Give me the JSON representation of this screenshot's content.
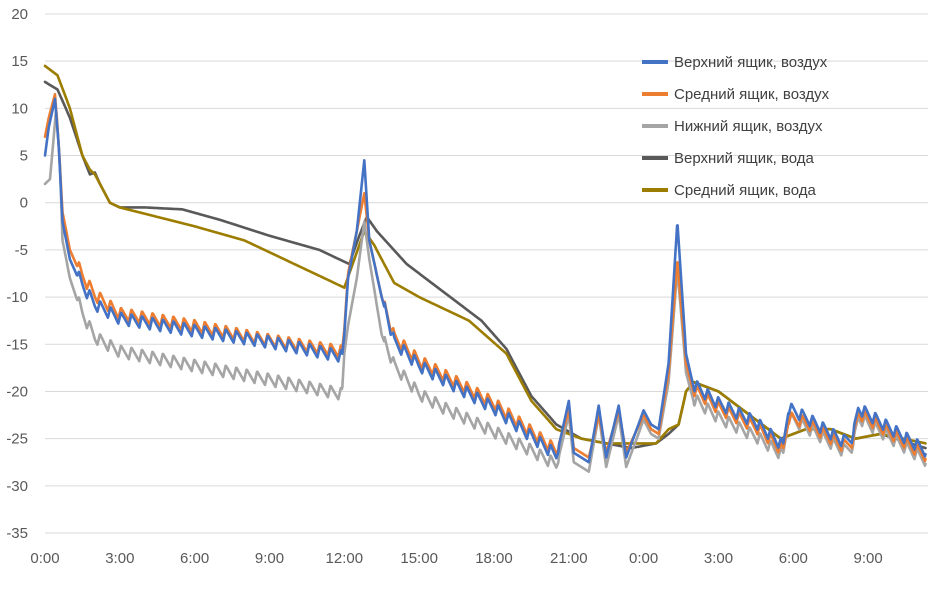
{
  "chart_data": {
    "type": "line",
    "title": "",
    "xlabel": "",
    "ylabel": "",
    "ylim": [
      -35,
      20
    ],
    "y_ticks": [
      20,
      15,
      10,
      5,
      0,
      -5,
      -10,
      -15,
      -20,
      -25,
      -30,
      -35
    ],
    "x_range_hours": [
      0,
      35.4
    ],
    "x_ticks": [
      {
        "hour": 0,
        "label": "0:00"
      },
      {
        "hour": 3,
        "label": "3:00"
      },
      {
        "hour": 6,
        "label": "6:00"
      },
      {
        "hour": 9,
        "label": "9:00"
      },
      {
        "hour": 12,
        "label": "12:00"
      },
      {
        "hour": 15,
        "label": "15:00"
      },
      {
        "hour": 18,
        "label": "18:00"
      },
      {
        "hour": 21,
        "label": "21:00"
      },
      {
        "hour": 24,
        "label": "0:00"
      },
      {
        "hour": 27,
        "label": "3:00"
      },
      {
        "hour": 30,
        "label": "6:00"
      },
      {
        "hour": 33,
        "label": "9:00"
      }
    ],
    "grid": {
      "horizontal": true,
      "vertical": false
    },
    "legend_position": "top-right",
    "series": [
      {
        "name": "Верхний ящик, воздух",
        "color": "#4472C4",
        "points": [
          [
            0,
            5
          ],
          [
            0.15,
            8
          ],
          [
            0.4,
            11
          ],
          [
            0.55,
            6
          ],
          [
            0.7,
            -2
          ],
          [
            1.0,
            -6
          ],
          [
            1.5,
            -9
          ],
          [
            2.0,
            -11
          ],
          [
            3.0,
            -12.5
          ],
          [
            6.0,
            -13.8
          ],
          [
            9.0,
            -15
          ],
          [
            11.9,
            -16.5
          ],
          [
            12.0,
            -14
          ],
          [
            12.15,
            -8
          ],
          [
            12.5,
            -3
          ],
          [
            12.8,
            4.5
          ],
          [
            13.0,
            -4
          ],
          [
            13.5,
            -10
          ],
          [
            14,
            -15
          ],
          [
            15,
            -17.5
          ],
          [
            16,
            -19
          ],
          [
            18,
            -22
          ],
          [
            19.5,
            -25
          ],
          [
            20.5,
            -27
          ],
          [
            21,
            -21
          ],
          [
            21.2,
            -26.5
          ],
          [
            21.8,
            -27.5
          ],
          [
            22.2,
            -21.5
          ],
          [
            22.5,
            -27
          ],
          [
            23.0,
            -21.5
          ],
          [
            23.3,
            -27
          ],
          [
            24.0,
            -22
          ],
          [
            24.3,
            -23.5
          ],
          [
            24.6,
            -24
          ],
          [
            25,
            -17
          ],
          [
            25.35,
            -2
          ],
          [
            25.7,
            -16
          ],
          [
            26,
            -19.5
          ],
          [
            27,
            -21.5
          ],
          [
            28.5,
            -23.5
          ],
          [
            29.6,
            -26
          ],
          [
            29.8,
            -22
          ],
          [
            30.5,
            -23
          ],
          [
            32,
            -25.5
          ],
          [
            32.4,
            -25
          ],
          [
            32.6,
            -22
          ],
          [
            33.5,
            -23.5
          ],
          [
            35.3,
            -26.5
          ]
        ]
      },
      {
        "name": "Средний ящик, воздух",
        "color": "#ED7D31",
        "points": [
          [
            0,
            7
          ],
          [
            0.15,
            9
          ],
          [
            0.4,
            11.5
          ],
          [
            0.55,
            6
          ],
          [
            0.7,
            -1
          ],
          [
            1.0,
            -5
          ],
          [
            1.5,
            -8
          ],
          [
            2.0,
            -10
          ],
          [
            3.0,
            -12
          ],
          [
            6.0,
            -13.3
          ],
          [
            9.0,
            -14.8
          ],
          [
            11.9,
            -16
          ],
          [
            12.0,
            -13.5
          ],
          [
            12.15,
            -7.5
          ],
          [
            12.5,
            -3
          ],
          [
            12.8,
            1
          ],
          [
            13.0,
            -4
          ],
          [
            13.5,
            -10
          ],
          [
            14,
            -14.5
          ],
          [
            15,
            -17
          ],
          [
            16,
            -18.5
          ],
          [
            18,
            -21.5
          ],
          [
            19.5,
            -24.5
          ],
          [
            20.5,
            -26.5
          ],
          [
            21,
            -22
          ],
          [
            21.2,
            -26
          ],
          [
            21.8,
            -27
          ],
          [
            22.2,
            -22.5
          ],
          [
            22.5,
            -26.5
          ],
          [
            23.0,
            -22
          ],
          [
            23.3,
            -26.5
          ],
          [
            24.0,
            -22.5
          ],
          [
            24.3,
            -24
          ],
          [
            24.6,
            -24.5
          ],
          [
            25,
            -18
          ],
          [
            25.35,
            -6
          ],
          [
            25.7,
            -17
          ],
          [
            26,
            -20
          ],
          [
            27,
            -22
          ],
          [
            28.5,
            -24
          ],
          [
            29.6,
            -26.5
          ],
          [
            29.8,
            -23
          ],
          [
            30.5,
            -23.5
          ],
          [
            32,
            -26
          ],
          [
            32.4,
            -25.5
          ],
          [
            32.6,
            -22.5
          ],
          [
            33.5,
            -24
          ],
          [
            35.3,
            -27
          ]
        ]
      },
      {
        "name": "Нижний ящик, воздух",
        "color": "#A5A5A5",
        "points": [
          [
            0,
            2
          ],
          [
            0.2,
            2.5
          ],
          [
            0.45,
            10
          ],
          [
            0.6,
            4
          ],
          [
            0.7,
            -4
          ],
          [
            1.0,
            -8
          ],
          [
            1.5,
            -12
          ],
          [
            2.0,
            -14.5
          ],
          [
            3.0,
            -16
          ],
          [
            6.0,
            -17.5
          ],
          [
            9.0,
            -19
          ],
          [
            11.9,
            -20.5
          ],
          [
            12.0,
            -16
          ],
          [
            12.15,
            -13
          ],
          [
            12.5,
            -8
          ],
          [
            12.8,
            -2
          ],
          [
            13.0,
            -6
          ],
          [
            13.5,
            -14
          ],
          [
            14,
            -17.5
          ],
          [
            15,
            -20.5
          ],
          [
            16,
            -22
          ],
          [
            18,
            -24.5
          ],
          [
            19.5,
            -26.5
          ],
          [
            20.5,
            -28
          ],
          [
            21,
            -22.5
          ],
          [
            21.2,
            -27.5
          ],
          [
            21.8,
            -28.5
          ],
          [
            22.2,
            -22.5
          ],
          [
            22.5,
            -28
          ],
          [
            23.0,
            -22.5
          ],
          [
            23.3,
            -28
          ],
          [
            24.0,
            -23
          ],
          [
            24.3,
            -24.5
          ],
          [
            24.6,
            -25
          ],
          [
            25,
            -19
          ],
          [
            25.35,
            -7
          ],
          [
            25.7,
            -18
          ],
          [
            26,
            -21
          ],
          [
            27,
            -23
          ],
          [
            28.5,
            -25
          ],
          [
            29.6,
            -27
          ],
          [
            29.8,
            -23
          ],
          [
            30.5,
            -24
          ],
          [
            32,
            -26.5
          ],
          [
            32.4,
            -26
          ],
          [
            32.6,
            -23
          ],
          [
            33.5,
            -24.5
          ],
          [
            35.3,
            -27.5
          ]
        ]
      },
      {
        "name": "Верхний ящик, вода",
        "color": "#595959",
        "points": [
          [
            0,
            12.8
          ],
          [
            0.5,
            12
          ],
          [
            1.0,
            9
          ],
          [
            1.5,
            5
          ],
          [
            1.8,
            3
          ],
          [
            2.0,
            3.2
          ],
          [
            2.2,
            2
          ],
          [
            2.6,
            0
          ],
          [
            3.0,
            -0.5
          ],
          [
            4.0,
            -0.5
          ],
          [
            5.5,
            -0.7
          ],
          [
            7.0,
            -1.8
          ],
          [
            9.0,
            -3.5
          ],
          [
            11.0,
            -5
          ],
          [
            12.2,
            -6.5
          ],
          [
            12.6,
            -3.5
          ],
          [
            12.9,
            -1.5
          ],
          [
            13.3,
            -3
          ],
          [
            14.5,
            -6.5
          ],
          [
            16,
            -9.5
          ],
          [
            17.5,
            -12.5
          ],
          [
            18.5,
            -15.5
          ],
          [
            19.5,
            -20.5
          ],
          [
            20.5,
            -23.5
          ],
          [
            21.5,
            -25
          ],
          [
            22.5,
            -25.5
          ],
          [
            23.5,
            -26
          ],
          [
            24.5,
            -25.5
          ],
          [
            25.0,
            -24.5
          ],
          [
            25.4,
            -23.5
          ],
          [
            25.7,
            -20
          ],
          [
            26,
            -19
          ],
          [
            27,
            -20
          ],
          [
            29.5,
            -25
          ],
          [
            30.5,
            -24
          ],
          [
            31.5,
            -24
          ],
          [
            32.5,
            -25
          ],
          [
            33.5,
            -24.5
          ],
          [
            35.3,
            -26
          ]
        ]
      },
      {
        "name": "Средний ящик, вода",
        "color": "#9C7D00",
        "points": [
          [
            0,
            14.5
          ],
          [
            0.5,
            13.5
          ],
          [
            1.0,
            10
          ],
          [
            1.5,
            5
          ],
          [
            1.8,
            3.5
          ],
          [
            2.0,
            3
          ],
          [
            2.3,
            1.5
          ],
          [
            2.6,
            0
          ],
          [
            3.0,
            -0.5
          ],
          [
            4.5,
            -1.5
          ],
          [
            6.0,
            -2.5
          ],
          [
            8.0,
            -4
          ],
          [
            10.0,
            -6.5
          ],
          [
            12.0,
            -9
          ],
          [
            12.4,
            -6
          ],
          [
            12.8,
            -3
          ],
          [
            13.2,
            -4.5
          ],
          [
            14,
            -8.5
          ],
          [
            15,
            -10
          ],
          [
            17,
            -12.5
          ],
          [
            18.5,
            -16
          ],
          [
            19.5,
            -21
          ],
          [
            20.5,
            -24
          ],
          [
            21.5,
            -25
          ],
          [
            22.5,
            -25.5
          ],
          [
            23.5,
            -25.5
          ],
          [
            24.5,
            -25.5
          ],
          [
            25.0,
            -24
          ],
          [
            25.4,
            -23.5
          ],
          [
            25.7,
            -20
          ],
          [
            26,
            -19
          ],
          [
            27,
            -20
          ],
          [
            29.5,
            -25
          ],
          [
            30.5,
            -24
          ],
          [
            31.5,
            -24
          ],
          [
            32.5,
            -25
          ],
          [
            33.5,
            -24.5
          ],
          [
            35.3,
            -25.5
          ]
        ]
      }
    ]
  }
}
